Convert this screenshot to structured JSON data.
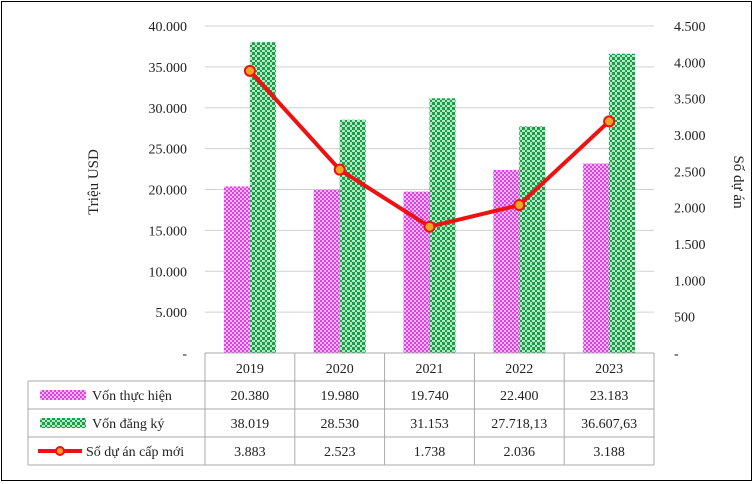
{
  "chart_data": {
    "type": "bar",
    "categories": [
      "2019",
      "2020",
      "2021",
      "2022",
      "2023"
    ],
    "ylabel": "Triệu USD",
    "y2label": "Số dự án",
    "ylim": [
      0,
      40000
    ],
    "y2lim": [
      0,
      4500
    ],
    "yticks": [
      "-",
      "5.000",
      "10.000",
      "15.000",
      "20.000",
      "25.000",
      "30.000",
      "35.000",
      "40.000"
    ],
    "y2ticks": [
      "-",
      "500",
      "1.000",
      "1.500",
      "2.000",
      "2.500",
      "3.000",
      "3.500",
      "4.000",
      "4.500"
    ],
    "series": [
      {
        "name": "Vốn thực hiện",
        "kind": "bar",
        "color": "#e040e8",
        "values": [
          20380,
          19980,
          19740,
          22400,
          23183
        ],
        "labels": [
          "20.380",
          "19.980",
          "19.740",
          "22.400",
          "23.183"
        ]
      },
      {
        "name": "Vốn đăng ký",
        "kind": "bar",
        "color": "#18a048",
        "values": [
          38019,
          28530,
          31153,
          27718.13,
          36607.63
        ],
        "labels": [
          "38.019",
          "28.530",
          "31.153",
          "27.718,13",
          "36.607,63"
        ]
      },
      {
        "name": "Số dự án cấp mới",
        "kind": "line",
        "axis": "secondary",
        "color": "#ee1111",
        "marker_color": "#f5a524",
        "values": [
          3883,
          2523,
          1738,
          2036,
          3188
        ],
        "labels": [
          "3.883",
          "2.523",
          "1.738",
          "2.036",
          "3.188"
        ]
      }
    ],
    "grid": true,
    "data_table": true
  }
}
